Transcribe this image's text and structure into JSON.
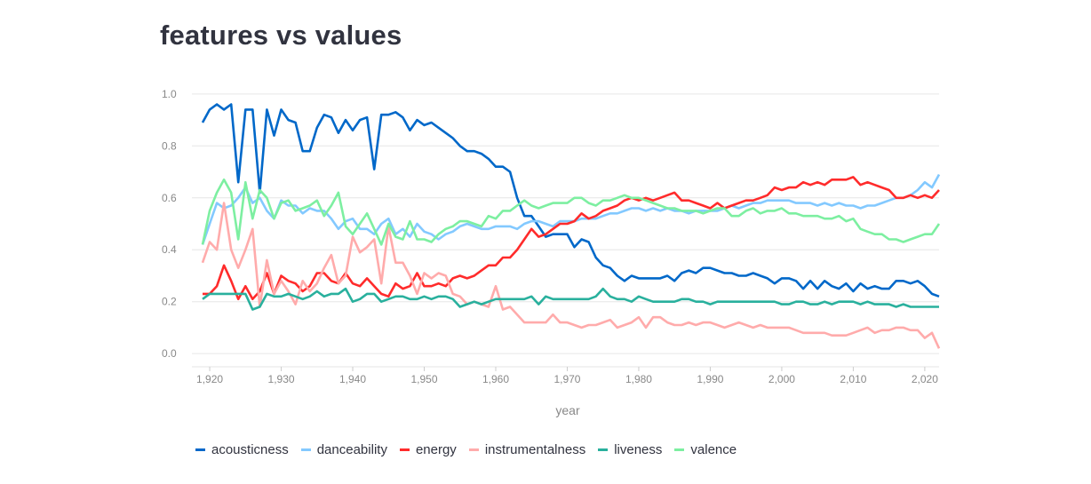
{
  "page": {
    "title": "features vs values"
  },
  "chart_data": {
    "type": "line",
    "title": "features vs values",
    "xlabel": "year",
    "ylabel": "",
    "xlim": [
      1919,
      2022
    ],
    "ylim": [
      -0.02,
      1.02
    ],
    "x_ticks": [
      1920,
      1930,
      1940,
      1950,
      1960,
      1970,
      1980,
      1990,
      2000,
      2010,
      2020
    ],
    "x_tick_labels": [
      "1,920",
      "1,930",
      "1,940",
      "1,950",
      "1,960",
      "1,970",
      "1,980",
      "1,990",
      "2,000",
      "2,010",
      "2,020"
    ],
    "y_ticks": [
      0.0,
      0.2,
      0.4,
      0.6,
      0.8,
      1.0
    ],
    "y_tick_labels": [
      "0.0",
      "0.2",
      "0.4",
      "0.6",
      "0.8",
      "1.0"
    ],
    "grid": "horizontal",
    "legend_position": "bottom",
    "x": [
      1919,
      1920,
      1921,
      1922,
      1923,
      1924,
      1925,
      1926,
      1927,
      1928,
      1929,
      1930,
      1931,
      1932,
      1933,
      1934,
      1935,
      1936,
      1937,
      1938,
      1939,
      1940,
      1941,
      1942,
      1943,
      1944,
      1945,
      1946,
      1947,
      1948,
      1949,
      1950,
      1951,
      1952,
      1953,
      1954,
      1955,
      1956,
      1957,
      1958,
      1959,
      1960,
      1961,
      1962,
      1963,
      1964,
      1965,
      1966,
      1967,
      1968,
      1969,
      1970,
      1971,
      1972,
      1973,
      1974,
      1975,
      1976,
      1977,
      1978,
      1979,
      1980,
      1981,
      1982,
      1983,
      1984,
      1985,
      1986,
      1987,
      1988,
      1989,
      1990,
      1991,
      1992,
      1993,
      1994,
      1995,
      1996,
      1997,
      1998,
      1999,
      2000,
      2001,
      2002,
      2003,
      2004,
      2005,
      2006,
      2007,
      2008,
      2009,
      2010,
      2011,
      2012,
      2013,
      2014,
      2015,
      2016,
      2017,
      2018,
      2019,
      2020,
      2021,
      2022
    ],
    "series": [
      {
        "name": "acousticness",
        "color": "#0068c9",
        "values": [
          0.89,
          0.94,
          0.96,
          0.94,
          0.96,
          0.66,
          0.94,
          0.94,
          0.62,
          0.94,
          0.84,
          0.94,
          0.9,
          0.89,
          0.78,
          0.78,
          0.87,
          0.92,
          0.91,
          0.85,
          0.9,
          0.86,
          0.9,
          0.91,
          0.71,
          0.92,
          0.92,
          0.93,
          0.91,
          0.86,
          0.9,
          0.88,
          0.89,
          0.87,
          0.85,
          0.83,
          0.8,
          0.78,
          0.78,
          0.77,
          0.75,
          0.72,
          0.72,
          0.7,
          0.6,
          0.53,
          0.53,
          0.49,
          0.45,
          0.46,
          0.46,
          0.46,
          0.41,
          0.44,
          0.43,
          0.37,
          0.34,
          0.33,
          0.3,
          0.28,
          0.3,
          0.29,
          0.29,
          0.29,
          0.29,
          0.3,
          0.28,
          0.31,
          0.32,
          0.31,
          0.33,
          0.33,
          0.32,
          0.31,
          0.31,
          0.3,
          0.3,
          0.31,
          0.3,
          0.29,
          0.27,
          0.29,
          0.29,
          0.28,
          0.25,
          0.28,
          0.25,
          0.28,
          0.26,
          0.25,
          0.27,
          0.24,
          0.27,
          0.25,
          0.26,
          0.25,
          0.25,
          0.28,
          0.28,
          0.27,
          0.28,
          0.26,
          0.23,
          0.22
        ]
      },
      {
        "name": "danceability",
        "color": "#83c9ff",
        "values": [
          0.42,
          0.5,
          0.58,
          0.56,
          0.57,
          0.6,
          0.64,
          0.58,
          0.6,
          0.55,
          0.52,
          0.59,
          0.57,
          0.57,
          0.54,
          0.56,
          0.55,
          0.55,
          0.52,
          0.48,
          0.51,
          0.52,
          0.48,
          0.48,
          0.46,
          0.5,
          0.52,
          0.46,
          0.48,
          0.45,
          0.5,
          0.47,
          0.46,
          0.44,
          0.46,
          0.47,
          0.49,
          0.5,
          0.49,
          0.48,
          0.48,
          0.49,
          0.49,
          0.49,
          0.48,
          0.5,
          0.51,
          0.51,
          0.5,
          0.49,
          0.51,
          0.51,
          0.51,
          0.52,
          0.52,
          0.52,
          0.53,
          0.54,
          0.54,
          0.55,
          0.56,
          0.56,
          0.55,
          0.56,
          0.55,
          0.56,
          0.55,
          0.55,
          0.54,
          0.55,
          0.55,
          0.55,
          0.55,
          0.56,
          0.57,
          0.56,
          0.57,
          0.58,
          0.58,
          0.59,
          0.59,
          0.59,
          0.59,
          0.58,
          0.58,
          0.58,
          0.57,
          0.58,
          0.57,
          0.58,
          0.57,
          0.57,
          0.56,
          0.57,
          0.57,
          0.58,
          0.59,
          0.6,
          0.6,
          0.61,
          0.63,
          0.66,
          0.64,
          0.69
        ]
      },
      {
        "name": "energy",
        "color": "#ff2b2b",
        "values": [
          0.23,
          0.23,
          0.26,
          0.34,
          0.28,
          0.21,
          0.26,
          0.21,
          0.24,
          0.31,
          0.23,
          0.3,
          0.28,
          0.27,
          0.24,
          0.26,
          0.31,
          0.31,
          0.28,
          0.27,
          0.31,
          0.27,
          0.26,
          0.29,
          0.26,
          0.23,
          0.22,
          0.27,
          0.25,
          0.26,
          0.31,
          0.26,
          0.26,
          0.27,
          0.26,
          0.29,
          0.3,
          0.29,
          0.3,
          0.32,
          0.34,
          0.34,
          0.37,
          0.37,
          0.4,
          0.44,
          0.48,
          0.45,
          0.46,
          0.48,
          0.5,
          0.5,
          0.51,
          0.54,
          0.52,
          0.53,
          0.55,
          0.56,
          0.57,
          0.59,
          0.6,
          0.59,
          0.6,
          0.59,
          0.6,
          0.61,
          0.62,
          0.59,
          0.59,
          0.58,
          0.57,
          0.56,
          0.58,
          0.56,
          0.57,
          0.58,
          0.59,
          0.59,
          0.6,
          0.61,
          0.64,
          0.63,
          0.64,
          0.64,
          0.66,
          0.65,
          0.66,
          0.65,
          0.67,
          0.67,
          0.67,
          0.68,
          0.65,
          0.66,
          0.65,
          0.64,
          0.63,
          0.6,
          0.6,
          0.61,
          0.6,
          0.61,
          0.6,
          0.63
        ]
      },
      {
        "name": "instrumentalness",
        "color": "#ffabab",
        "values": [
          0.35,
          0.43,
          0.4,
          0.58,
          0.4,
          0.33,
          0.4,
          0.48,
          0.18,
          0.36,
          0.23,
          0.28,
          0.24,
          0.19,
          0.28,
          0.24,
          0.27,
          0.33,
          0.38,
          0.27,
          0.3,
          0.45,
          0.39,
          0.41,
          0.44,
          0.27,
          0.49,
          0.35,
          0.35,
          0.3,
          0.23,
          0.31,
          0.29,
          0.31,
          0.3,
          0.23,
          0.22,
          0.19,
          0.2,
          0.19,
          0.18,
          0.26,
          0.17,
          0.18,
          0.15,
          0.12,
          0.12,
          0.12,
          0.12,
          0.15,
          0.12,
          0.12,
          0.11,
          0.1,
          0.11,
          0.11,
          0.12,
          0.13,
          0.1,
          0.11,
          0.12,
          0.14,
          0.1,
          0.14,
          0.14,
          0.12,
          0.11,
          0.11,
          0.12,
          0.11,
          0.12,
          0.12,
          0.11,
          0.1,
          0.11,
          0.12,
          0.11,
          0.1,
          0.11,
          0.1,
          0.1,
          0.1,
          0.1,
          0.09,
          0.08,
          0.08,
          0.08,
          0.08,
          0.07,
          0.07,
          0.07,
          0.08,
          0.09,
          0.1,
          0.08,
          0.09,
          0.09,
          0.1,
          0.1,
          0.09,
          0.09,
          0.06,
          0.08,
          0.02
        ]
      },
      {
        "name": "liveness",
        "color": "#29b09d",
        "values": [
          0.21,
          0.23,
          0.23,
          0.23,
          0.23,
          0.23,
          0.23,
          0.17,
          0.18,
          0.23,
          0.22,
          0.22,
          0.23,
          0.22,
          0.21,
          0.22,
          0.24,
          0.22,
          0.23,
          0.23,
          0.25,
          0.2,
          0.21,
          0.23,
          0.23,
          0.2,
          0.21,
          0.22,
          0.22,
          0.21,
          0.21,
          0.22,
          0.21,
          0.22,
          0.22,
          0.21,
          0.18,
          0.19,
          0.2,
          0.19,
          0.2,
          0.21,
          0.21,
          0.21,
          0.21,
          0.21,
          0.22,
          0.19,
          0.22,
          0.21,
          0.21,
          0.21,
          0.21,
          0.21,
          0.21,
          0.22,
          0.25,
          0.22,
          0.21,
          0.21,
          0.2,
          0.22,
          0.21,
          0.2,
          0.2,
          0.2,
          0.2,
          0.21,
          0.21,
          0.2,
          0.2,
          0.19,
          0.2,
          0.2,
          0.2,
          0.2,
          0.2,
          0.2,
          0.2,
          0.2,
          0.2,
          0.19,
          0.19,
          0.2,
          0.2,
          0.19,
          0.19,
          0.2,
          0.19,
          0.2,
          0.2,
          0.2,
          0.19,
          0.2,
          0.19,
          0.19,
          0.19,
          0.18,
          0.19,
          0.18,
          0.18,
          0.18,
          0.18,
          0.18
        ]
      },
      {
        "name": "valence",
        "color": "#7defa1",
        "values": [
          0.42,
          0.55,
          0.62,
          0.67,
          0.62,
          0.44,
          0.66,
          0.52,
          0.63,
          0.6,
          0.52,
          0.58,
          0.59,
          0.55,
          0.56,
          0.57,
          0.59,
          0.53,
          0.57,
          0.62,
          0.49,
          0.46,
          0.5,
          0.54,
          0.48,
          0.42,
          0.5,
          0.45,
          0.44,
          0.51,
          0.44,
          0.44,
          0.43,
          0.46,
          0.48,
          0.49,
          0.51,
          0.51,
          0.5,
          0.49,
          0.53,
          0.52,
          0.55,
          0.55,
          0.57,
          0.59,
          0.57,
          0.56,
          0.57,
          0.58,
          0.58,
          0.58,
          0.6,
          0.6,
          0.58,
          0.57,
          0.59,
          0.59,
          0.6,
          0.61,
          0.6,
          0.6,
          0.59,
          0.58,
          0.57,
          0.56,
          0.56,
          0.55,
          0.55,
          0.55,
          0.54,
          0.55,
          0.56,
          0.56,
          0.53,
          0.53,
          0.55,
          0.56,
          0.54,
          0.55,
          0.55,
          0.56,
          0.54,
          0.54,
          0.53,
          0.53,
          0.53,
          0.52,
          0.52,
          0.53,
          0.51,
          0.52,
          0.48,
          0.47,
          0.46,
          0.46,
          0.44,
          0.44,
          0.43,
          0.44,
          0.45,
          0.46,
          0.46,
          0.5
        ]
      }
    ]
  }
}
